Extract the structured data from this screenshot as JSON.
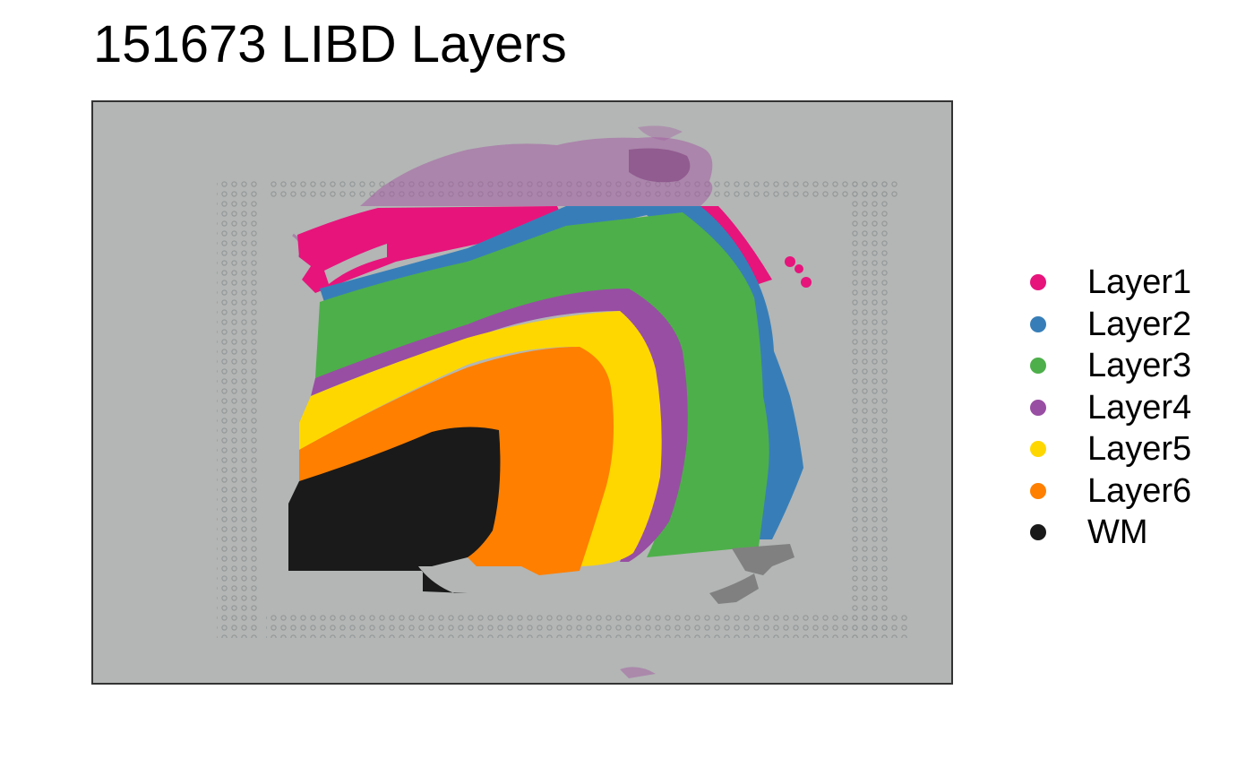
{
  "title": "151673 LIBD Layers",
  "legend": [
    {
      "label": "Layer1",
      "color": "#E7147C"
    },
    {
      "label": "Layer2",
      "color": "#377EB8"
    },
    {
      "label": "Layer3",
      "color": "#4DAF4A"
    },
    {
      "label": "Layer4",
      "color": "#984EA3"
    },
    {
      "label": "Layer5",
      "color": "#FFD700"
    },
    {
      "label": "Layer6",
      "color": "#FF7F00"
    },
    {
      "label": "WM",
      "color": "#1A1A1A"
    }
  ],
  "colors": {
    "background": "#B3B6B5",
    "tissue_stain": "#A45CA2",
    "unlabeled_spot": "#808080",
    "panel_border": "#333333"
  }
}
